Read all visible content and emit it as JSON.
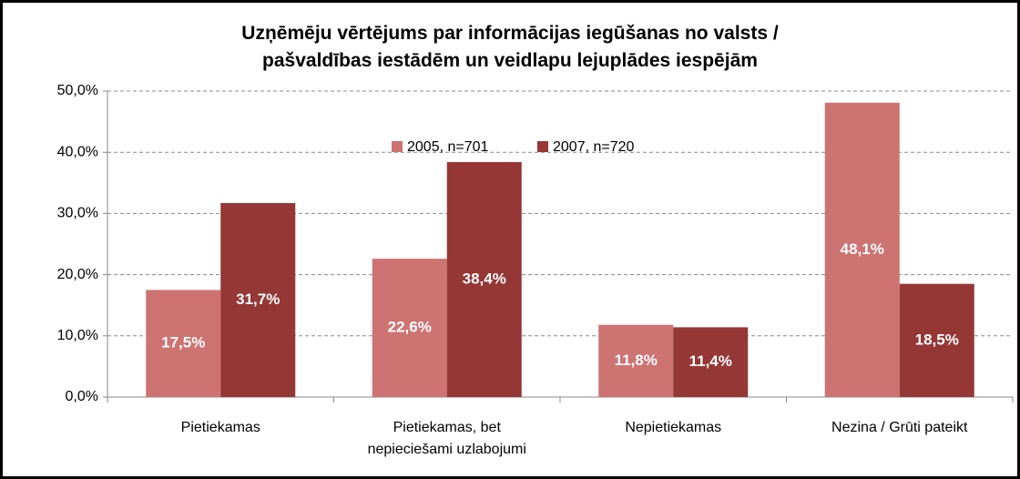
{
  "chart_data": {
    "type": "bar",
    "title": "Uzņēmēju vērtējums par informācijas iegūšanas no valsts / pašvaldības iestādēm un veidlapu lejuplādes iespējām",
    "categories": [
      "Pietiekamas",
      "Pietiekamas, bet nepieciešami uzlabojumi",
      "Nepietiekamas",
      "Nezina / Grūti pateikt"
    ],
    "series": [
      {
        "name": "2005, n=701",
        "color": "#cd7371",
        "values": [
          17.5,
          22.6,
          11.8,
          48.1
        ],
        "value_labels": [
          "17,5%",
          "22,6%",
          "11,8%",
          "48,1%"
        ]
      },
      {
        "name": "2007, n=720",
        "color": "#953735",
        "values": [
          31.7,
          38.4,
          11.4,
          18.5
        ],
        "value_labels": [
          "31,7%",
          "38,4%",
          "11,4%",
          "18,5%"
        ]
      }
    ],
    "ylim": [
      0,
      50
    ],
    "yticks": [
      {
        "value": 0,
        "label": "0,0%"
      },
      {
        "value": 10,
        "label": "10,0%"
      },
      {
        "value": 20,
        "label": "20,0%"
      },
      {
        "value": 30,
        "label": "30,0%"
      },
      {
        "value": 40,
        "label": "40,0%"
      },
      {
        "value": 50,
        "label": "50,0%"
      }
    ],
    "grid": true,
    "legend": "top"
  }
}
